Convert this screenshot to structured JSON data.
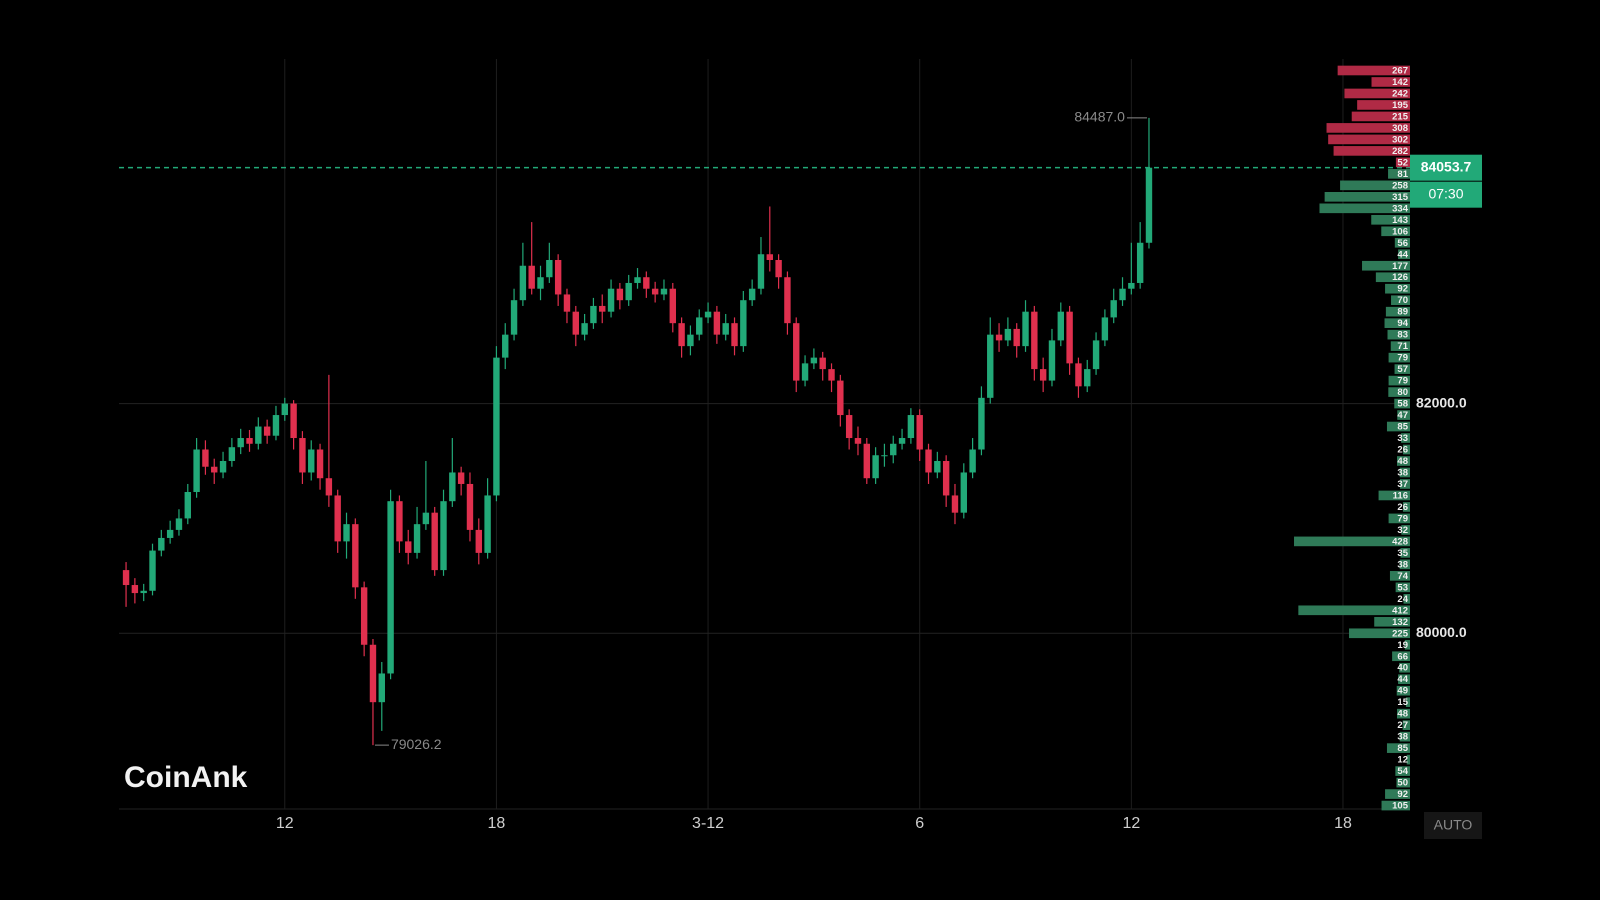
{
  "chart_data": {
    "type": "candlestick",
    "watermark": "CoinAnk",
    "x": [
      7.5,
      7.75,
      8,
      8.25,
      8.5,
      8.75,
      9,
      9.25,
      9.5,
      9.75,
      10,
      10.25,
      10.5,
      10.75,
      11,
      11.25,
      11.5,
      11.75,
      12,
      12.25,
      12.5,
      12.75,
      13,
      13.25,
      13.5,
      13.75,
      14,
      14.25,
      14.5,
      14.75,
      15,
      15.25,
      15.5,
      15.75,
      16,
      16.25,
      16.5,
      16.75,
      17,
      17.25,
      17.5,
      17.75,
      18,
      18.25,
      18.5,
      18.75,
      19,
      19.25,
      19.5,
      19.75,
      20,
      20.25,
      20.5,
      20.75,
      21,
      21.25,
      21.5,
      21.75,
      22,
      22.25,
      22.5,
      22.75,
      23,
      23.25,
      23.5,
      23.75,
      24,
      24.25,
      24.5,
      24.75,
      25,
      25.25,
      25.5,
      25.75,
      26,
      26.25,
      26.5,
      26.75,
      27,
      27.25,
      27.5,
      27.75,
      28,
      28.25,
      28.5,
      28.75,
      29,
      29.25,
      29.5,
      29.75,
      30,
      30.25,
      30.5,
      30.75,
      31,
      31.25,
      31.5,
      31.75,
      32,
      32.25,
      32.5,
      32.75,
      33,
      33.25,
      33.5,
      33.75,
      34,
      34.25,
      34.5,
      34.75,
      35,
      35.25,
      35.5,
      35.75,
      36,
      36.25,
      36.5
    ],
    "open": [
      80550,
      80420,
      80350,
      80370,
      80720,
      80830,
      80900,
      81000,
      81230,
      81600,
      81450,
      81400,
      81500,
      81620,
      81700,
      81650,
      81800,
      81720,
      81900,
      82000,
      81700,
      81400,
      81600,
      81350,
      81200,
      80800,
      80950,
      80400,
      79900,
      79400,
      79650,
      81150,
      80800,
      80700,
      80950,
      81050,
      80550,
      81150,
      81400,
      81300,
      80900,
      80700,
      81200,
      82400,
      82600,
      82900,
      83200,
      83000,
      83100,
      83250,
      82950,
      82800,
      82600,
      82700,
      82850,
      82800,
      83000,
      82900,
      83050,
      83100,
      83000,
      82950,
      83000,
      82700,
      82500,
      82600,
      82750,
      82800,
      82600,
      82700,
      82500,
      82900,
      83000,
      83300,
      83250,
      83100,
      82700,
      82200,
      82350,
      82400,
      82300,
      82200,
      81900,
      81700,
      81650,
      81350,
      81550,
      81550,
      81650,
      81700,
      81900,
      81600,
      81400,
      81500,
      81200,
      81050,
      81400,
      81600,
      82050,
      82600,
      82550,
      82650,
      82500,
      82800,
      82300,
      82200,
      82550,
      82800,
      82350,
      82150,
      82300,
      82550,
      82750,
      82900,
      83000,
      83050,
      83400
    ],
    "high": [
      80620,
      80480,
      80430,
      80780,
      80900,
      80980,
      81080,
      81300,
      81700,
      81680,
      81520,
      81580,
      81700,
      81780,
      81770,
      81880,
      81860,
      81980,
      82050,
      82030,
      81760,
      81680,
      81650,
      82250,
      81250,
      81050,
      81000,
      80450,
      79950,
      79750,
      81250,
      81200,
      80900,
      81100,
      81500,
      81100,
      81250,
      81700,
      81450,
      81400,
      81000,
      81350,
      82500,
      82700,
      83000,
      83400,
      83580,
      83200,
      83400,
      83300,
      83000,
      82850,
      82780,
      82920,
      82950,
      83080,
      83050,
      83120,
      83180,
      83150,
      83060,
      83080,
      83050,
      82750,
      82680,
      82820,
      82880,
      82850,
      82780,
      82750,
      82980,
      83080,
      83450,
      83716,
      83300,
      83150,
      82750,
      82420,
      82480,
      82450,
      82350,
      82250,
      81950,
      81800,
      81700,
      81620,
      81650,
      81720,
      81780,
      81960,
      81950,
      81650,
      81580,
      81550,
      81300,
      81480,
      81700,
      82150,
      82750,
      82700,
      82750,
      82700,
      82900,
      82850,
      82400,
      82650,
      82880,
      82850,
      82400,
      82380,
      82620,
      82820,
      83000,
      83100,
      83400,
      83580,
      84487
    ],
    "low": [
      80230,
      80260,
      80280,
      80330,
      80670,
      80780,
      80850,
      80950,
      81180,
      81380,
      81300,
      81350,
      81450,
      81560,
      81580,
      81600,
      81650,
      81680,
      81850,
      81600,
      81300,
      81330,
      81250,
      81100,
      80700,
      80650,
      80300,
      79800,
      79026.2,
      79150,
      79600,
      80700,
      80600,
      80650,
      80900,
      80500,
      80500,
      81100,
      81200,
      80800,
      80600,
      80650,
      81150,
      82300,
      82550,
      82850,
      82950,
      82900,
      83050,
      82850,
      82700,
      82500,
      82550,
      82650,
      82700,
      82750,
      82820,
      82850,
      83000,
      82920,
      82880,
      82900,
      82620,
      82400,
      82420,
      82550,
      82700,
      82520,
      82550,
      82420,
      82450,
      82850,
      82950,
      83150,
      83000,
      82600,
      82100,
      82150,
      82300,
      82200,
      82100,
      81800,
      81600,
      81550,
      81300,
      81300,
      81450,
      81480,
      81600,
      81650,
      81500,
      81300,
      81350,
      81100,
      80950,
      81000,
      81350,
      81550,
      82000,
      82450,
      82500,
      82400,
      82450,
      82200,
      82100,
      82150,
      82500,
      82250,
      82050,
      82100,
      82250,
      82500,
      82700,
      82850,
      82950,
      83000,
      83350
    ],
    "close": [
      80420,
      80350,
      80370,
      80720,
      80830,
      80900,
      81000,
      81230,
      81600,
      81450,
      81400,
      81500,
      81620,
      81700,
      81650,
      81800,
      81720,
      81900,
      82000,
      81700,
      81400,
      81600,
      81350,
      81200,
      80800,
      80950,
      80400,
      79900,
      79400,
      79650,
      81150,
      80800,
      80700,
      80950,
      81050,
      80550,
      81150,
      81400,
      81300,
      80900,
      80700,
      81200,
      82400,
      82600,
      82900,
      83200,
      83000,
      83100,
      83250,
      82950,
      82800,
      82600,
      82700,
      82850,
      82800,
      83000,
      82900,
      83050,
      83100,
      83000,
      82950,
      83000,
      82700,
      82500,
      82600,
      82750,
      82800,
      82600,
      82700,
      82500,
      82900,
      83000,
      83300,
      83250,
      83100,
      82700,
      82200,
      82350,
      82400,
      82300,
      82200,
      81900,
      81700,
      81650,
      81350,
      81550,
      81550,
      81650,
      81700,
      81900,
      81600,
      81400,
      81500,
      81200,
      81050,
      81400,
      81600,
      82050,
      82600,
      82550,
      82650,
      82500,
      82800,
      82300,
      82200,
      82550,
      82800,
      82350,
      82150,
      82300,
      82550,
      82750,
      82900,
      83000,
      83050,
      83400,
      84053.7
    ],
    "up_color": "#22a978",
    "down_color": "#e0304e",
    "xlim": [
      7.3,
      43.9
    ],
    "ylim": [
      78470,
      85000
    ],
    "xticks": [
      12,
      18,
      {
        "value": 24,
        "label": "3-12"
      },
      {
        "value": 30,
        "label": "6"
      },
      {
        "value": 36,
        "label": "12"
      },
      {
        "value": 42,
        "label": "18"
      }
    ],
    "yticks": [
      {
        "value": 82000,
        "label": "82000.0"
      },
      {
        "value": 80000,
        "label": "80000.0"
      }
    ],
    "grid": true,
    "max_label": "84487.0",
    "min_label": "79026.2",
    "last_price": {
      "value": 84053.7,
      "label": "84053.7"
    },
    "countdown": "07:30",
    "scale_button": "AUTO",
    "volume_profile": {
      "prices": [
        84900,
        84800,
        84700,
        84600,
        84500,
        84400,
        84300,
        84200,
        84100,
        84000,
        83900,
        83800,
        83700,
        83600,
        83500,
        83400,
        83300,
        83200,
        83100,
        83000,
        82900,
        82800,
        82700,
        82600,
        82500,
        82400,
        82300,
        82200,
        82100,
        82000,
        81900,
        81800,
        81700,
        81600,
        81500,
        81400,
        81300,
        81200,
        81100,
        81000,
        80900,
        80800,
        80700,
        80600,
        80500,
        80400,
        80300,
        80200,
        80100,
        80000,
        79900,
        79800,
        79700,
        79600,
        79500,
        79400,
        79300,
        79200,
        79100,
        79000,
        78900,
        78800,
        78700,
        78600,
        78500
      ],
      "volumes": [
        267,
        142,
        242,
        195,
        215,
        308,
        302,
        282,
        52,
        81,
        258,
        315,
        334,
        143,
        106,
        56,
        44,
        177,
        126,
        92,
        70,
        89,
        94,
        83,
        71,
        79,
        57,
        79,
        80,
        58,
        47,
        85,
        33,
        26,
        48,
        38,
        37,
        116,
        26,
        79,
        32,
        428,
        35,
        38,
        74,
        53,
        24,
        412,
        132,
        225,
        19,
        66,
        40,
        44,
        49,
        15,
        48,
        27,
        38,
        85,
        12,
        54,
        50,
        92,
        105
      ],
      "up_color": "#b02a45",
      "down_color": "#2f7a58"
    }
  }
}
